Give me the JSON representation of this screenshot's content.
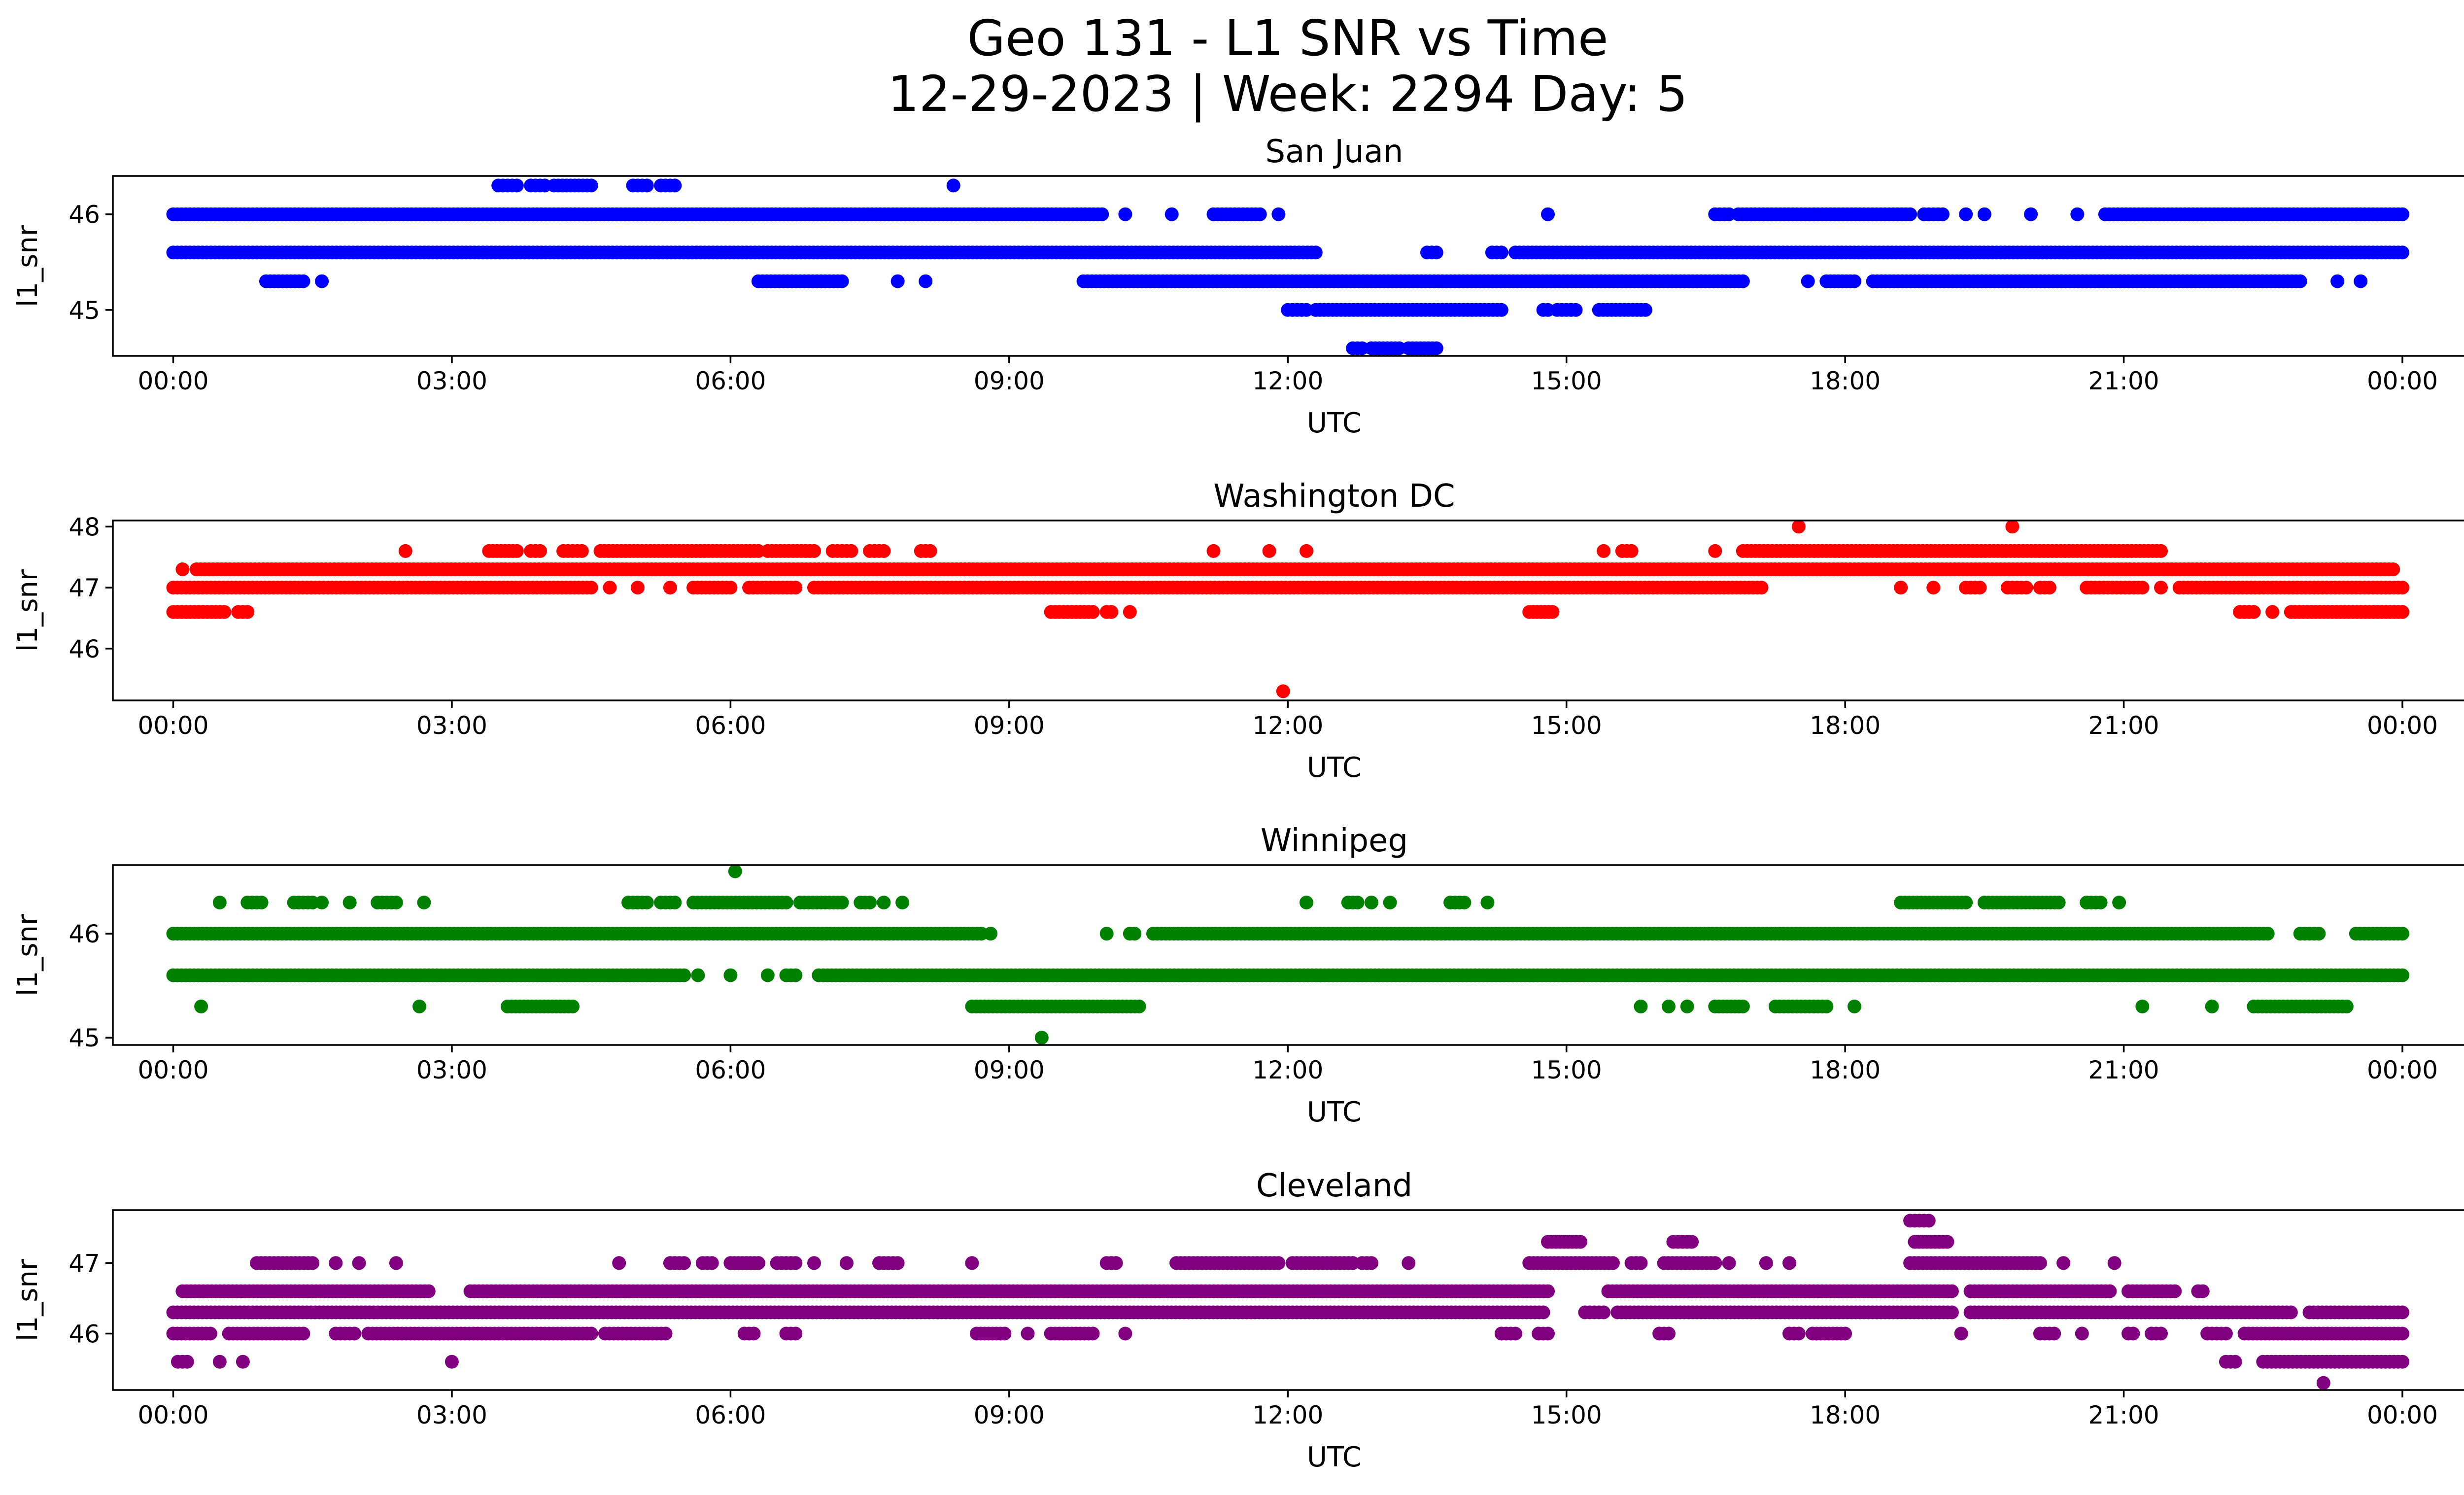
{
  "title_line1": "Geo 131 - L1 SNR vs Time",
  "title_line2": "12-29-2023 | Week: 2294 Day: 5",
  "chart_data": [
    {
      "type": "scatter",
      "title": "San Juan",
      "xlabel": "UTC",
      "ylabel": "l1_snr",
      "color": "#0000ff",
      "x_unit": "hours UTC",
      "xlim": [
        -0.65,
        25.65
      ],
      "ylim": [
        44.52,
        46.4
      ],
      "xticks": [
        0,
        3,
        6,
        9,
        12,
        15,
        18,
        21,
        24
      ],
      "xtick_labels": [
        "00:00",
        "03:00",
        "06:00",
        "09:00",
        "12:00",
        "15:00",
        "18:00",
        "21:00",
        "00:00"
      ],
      "yticks": [
        45,
        46
      ],
      "ytick_labels": [
        "45",
        "46"
      ],
      "grid": false,
      "levels": [
        {
          "y": 46.3,
          "ranges": [
            [
              3.5,
              3.7
            ],
            [
              3.85,
              4.0
            ],
            [
              4.1,
              4.5
            ],
            [
              4.95,
              5.1
            ],
            [
              5.25,
              5.4
            ],
            [
              8.4,
              8.4
            ]
          ]
        },
        {
          "y": 46.0,
          "ranges": [
            [
              0.0,
              10.0
            ],
            [
              10.25,
              10.25
            ],
            [
              10.75,
              10.75
            ],
            [
              11.2,
              11.7
            ],
            [
              11.9,
              11.9
            ],
            [
              14.8,
              14.8
            ],
            [
              16.6,
              16.75
            ],
            [
              16.85,
              18.7
            ],
            [
              18.85,
              19.05
            ],
            [
              19.3,
              19.3
            ],
            [
              19.5,
              19.5
            ],
            [
              20.0,
              20.0
            ],
            [
              20.5,
              20.5
            ],
            [
              20.8,
              24.0
            ]
          ]
        },
        {
          "y": 45.6,
          "ranges": [
            [
              0.0,
              12.3
            ],
            [
              13.5,
              13.6
            ],
            [
              14.2,
              14.3
            ],
            [
              14.45,
              24.0
            ]
          ]
        },
        {
          "y": 45.3,
          "ranges": [
            [
              1.0,
              1.4
            ],
            [
              1.6,
              1.6
            ],
            [
              6.3,
              7.2
            ],
            [
              7.8,
              7.8
            ],
            [
              8.1,
              8.1
            ],
            [
              9.8,
              16.9
            ],
            [
              17.6,
              17.6
            ],
            [
              17.8,
              18.1
            ],
            [
              18.3,
              22.9
            ],
            [
              23.3,
              23.3
            ],
            [
              23.55,
              23.55
            ]
          ]
        },
        {
          "y": 45.0,
          "ranges": [
            [
              12.0,
              12.2
            ],
            [
              12.3,
              14.3
            ],
            [
              14.75,
              14.8
            ],
            [
              14.9,
              15.1
            ],
            [
              15.35,
              15.85
            ]
          ]
        },
        {
          "y": 44.6,
          "ranges": [
            [
              12.7,
              12.8
            ],
            [
              12.9,
              13.2
            ],
            [
              13.3,
              13.6
            ]
          ]
        }
      ]
    },
    {
      "type": "scatter",
      "title": "Washington DC",
      "xlabel": "UTC",
      "ylabel": "l1_snr",
      "color": "#ff0000",
      "x_unit": "hours UTC",
      "xlim": [
        -0.65,
        25.65
      ],
      "ylim": [
        45.15,
        48.1
      ],
      "xticks": [
        0,
        3,
        6,
        9,
        12,
        15,
        18,
        21,
        24
      ],
      "xtick_labels": [
        "00:00",
        "03:00",
        "06:00",
        "09:00",
        "12:00",
        "15:00",
        "18:00",
        "21:00",
        "00:00"
      ],
      "yticks": [
        46,
        47,
        48
      ],
      "ytick_labels": [
        "46",
        "47",
        "48"
      ],
      "grid": false,
      "levels": [
        {
          "y": 48.0,
          "ranges": [
            [
              17.5,
              17.5
            ],
            [
              19.8,
              19.8
            ]
          ]
        },
        {
          "y": 47.6,
          "ranges": [
            [
              2.5,
              2.5
            ],
            [
              3.4,
              3.7
            ],
            [
              3.85,
              3.95
            ],
            [
              4.2,
              4.4
            ],
            [
              4.6,
              6.3
            ],
            [
              6.4,
              6.9
            ],
            [
              7.1,
              7.3
            ],
            [
              7.5,
              7.65
            ],
            [
              8.05,
              8.15
            ],
            [
              11.2,
              11.2
            ],
            [
              11.8,
              11.8
            ],
            [
              12.2,
              12.2
            ],
            [
              15.4,
              15.4
            ],
            [
              15.6,
              15.7
            ],
            [
              16.6,
              16.6
            ],
            [
              16.9,
              21.4
            ]
          ]
        },
        {
          "y": 47.3,
          "ranges": [
            [
              0.1,
              0.1
            ],
            [
              0.25,
              23.9
            ]
          ]
        },
        {
          "y": 47.0,
          "ranges": [
            [
              0.0,
              4.5
            ],
            [
              4.7,
              4.7
            ],
            [
              5.0,
              5.0
            ],
            [
              5.35,
              5.35
            ],
            [
              5.6,
              6.0
            ],
            [
              6.2,
              6.7
            ],
            [
              6.9,
              17.1
            ],
            [
              18.6,
              18.6
            ],
            [
              18.95,
              18.95
            ],
            [
              19.3,
              19.45
            ],
            [
              19.75,
              19.95
            ],
            [
              20.1,
              20.2
            ],
            [
              20.6,
              21.2
            ],
            [
              21.4,
              21.4
            ],
            [
              21.6,
              24.0
            ]
          ]
        },
        {
          "y": 46.6,
          "ranges": [
            [
              0.0,
              0.55
            ],
            [
              0.7,
              0.8
            ],
            [
              9.45,
              9.9
            ],
            [
              10.05,
              10.1
            ],
            [
              10.3,
              10.3
            ],
            [
              14.6,
              14.85
            ],
            [
              22.25,
              22.4
            ],
            [
              22.6,
              22.6
            ],
            [
              22.8,
              24.0
            ]
          ]
        },
        {
          "y": 45.3,
          "ranges": [
            [
              11.95,
              11.95
            ]
          ]
        }
      ]
    },
    {
      "type": "scatter",
      "title": "Winnipeg",
      "xlabel": "UTC",
      "ylabel": "l1_snr",
      "color": "#008000",
      "x_unit": "hours UTC",
      "xlim": [
        -0.65,
        25.65
      ],
      "ylim": [
        44.93,
        46.66
      ],
      "xticks": [
        0,
        3,
        6,
        9,
        12,
        15,
        18,
        21,
        24
      ],
      "xtick_labels": [
        "00:00",
        "03:00",
        "06:00",
        "09:00",
        "12:00",
        "15:00",
        "18:00",
        "21:00",
        "00:00"
      ],
      "yticks": [
        45,
        46
      ],
      "ytick_labels": [
        "45",
        "46"
      ],
      "grid": false,
      "levels": [
        {
          "y": 46.6,
          "ranges": [
            [
              6.05,
              6.05
            ]
          ]
        },
        {
          "y": 46.3,
          "ranges": [
            [
              0.5,
              0.5
            ],
            [
              0.8,
              0.95
            ],
            [
              1.3,
              1.5
            ],
            [
              1.6,
              1.6
            ],
            [
              1.9,
              1.9
            ],
            [
              2.2,
              2.4
            ],
            [
              2.7,
              2.7
            ],
            [
              4.9,
              5.1
            ],
            [
              5.25,
              5.4
            ],
            [
              5.6,
              6.6
            ],
            [
              6.75,
              7.2
            ],
            [
              7.4,
              7.5
            ],
            [
              7.65,
              7.65
            ],
            [
              7.85,
              7.85
            ],
            [
              12.2,
              12.2
            ],
            [
              12.65,
              12.75
            ],
            [
              12.9,
              12.9
            ],
            [
              13.1,
              13.1
            ],
            [
              13.75,
              13.9
            ],
            [
              14.15,
              14.15
            ],
            [
              18.6,
              19.3
            ],
            [
              19.5,
              20.3
            ],
            [
              20.6,
              20.75
            ],
            [
              20.95,
              20.95
            ]
          ]
        },
        {
          "y": 46.0,
          "ranges": [
            [
              0.0,
              8.7
            ],
            [
              8.8,
              8.8
            ],
            [
              10.05,
              10.05
            ],
            [
              10.3,
              10.35
            ],
            [
              10.55,
              22.55
            ],
            [
              22.9,
              23.1
            ],
            [
              23.5,
              24.0
            ]
          ]
        },
        {
          "y": 45.6,
          "ranges": [
            [
              0.0,
              5.5
            ],
            [
              5.65,
              5.65
            ],
            [
              6.0,
              6.0
            ],
            [
              6.4,
              6.4
            ],
            [
              6.6,
              6.7
            ],
            [
              6.95,
              6.95
            ],
            [
              7.0,
              24.0
            ]
          ]
        },
        {
          "y": 45.3,
          "ranges": [
            [
              0.3,
              0.3
            ],
            [
              2.65,
              2.65
            ],
            [
              3.6,
              4.3
            ],
            [
              8.6,
              10.4
            ],
            [
              15.8,
              15.8
            ],
            [
              16.1,
              16.1
            ],
            [
              16.3,
              16.3
            ],
            [
              16.6,
              16.9
            ],
            [
              17.25,
              17.8
            ],
            [
              18.1,
              18.1
            ],
            [
              21.2,
              21.2
            ],
            [
              21.95,
              21.95
            ],
            [
              22.4,
              23.4
            ]
          ]
        },
        {
          "y": 45.0,
          "ranges": [
            [
              9.35,
              9.35
            ]
          ]
        }
      ]
    },
    {
      "type": "scatter",
      "title": "Cleveland",
      "xlabel": "UTC",
      "ylabel": "l1_snr",
      "color": "#800080",
      "x_unit": "hours UTC",
      "xlim": [
        -0.65,
        25.65
      ],
      "ylim": [
        45.2,
        47.75
      ],
      "xticks": [
        0,
        3,
        6,
        9,
        12,
        15,
        18,
        21,
        24
      ],
      "xtick_labels": [
        "00:00",
        "03:00",
        "06:00",
        "09:00",
        "12:00",
        "15:00",
        "18:00",
        "21:00",
        "00:00"
      ],
      "yticks": [
        46,
        47
      ],
      "ytick_labels": [
        "46",
        "47"
      ],
      "grid": false,
      "levels": [
        {
          "y": 47.6,
          "ranges": [
            [
              18.7,
              18.9
            ]
          ]
        },
        {
          "y": 47.3,
          "ranges": [
            [
              14.8,
              15.15
            ],
            [
              16.15,
              16.35
            ],
            [
              18.75,
              19.1
            ]
          ]
        },
        {
          "y": 47.0,
          "ranges": [
            [
              0.9,
              1.5
            ],
            [
              1.75,
              1.75
            ],
            [
              2.0,
              2.0
            ],
            [
              2.4,
              2.4
            ],
            [
              4.8,
              4.8
            ],
            [
              5.35,
              5.5
            ],
            [
              5.7,
              5.8
            ],
            [
              6.0,
              6.3
            ],
            [
              6.5,
              6.7
            ],
            [
              6.9,
              6.9
            ],
            [
              7.25,
              7.25
            ],
            [
              7.6,
              7.8
            ],
            [
              8.6,
              8.6
            ],
            [
              10.05,
              10.15
            ],
            [
              10.8,
              11.9
            ],
            [
              12.05,
              12.7
            ],
            [
              12.8,
              12.9
            ],
            [
              13.3,
              13.3
            ],
            [
              14.6,
              15.5
            ],
            [
              15.7,
              15.8
            ],
            [
              16.05,
              16.6
            ],
            [
              16.75,
              16.75
            ],
            [
              17.15,
              17.15
            ],
            [
              17.4,
              17.4
            ],
            [
              18.7,
              20.1
            ],
            [
              20.35,
              20.35
            ],
            [
              20.9,
              20.9
            ]
          ]
        },
        {
          "y": 46.6,
          "ranges": [
            [
              0.1,
              2.75
            ],
            [
              3.2,
              14.8
            ],
            [
              15.45,
              19.15
            ],
            [
              19.35,
              20.85
            ],
            [
              21.05,
              21.55
            ],
            [
              21.8,
              21.85
            ]
          ]
        },
        {
          "y": 46.3,
          "ranges": [
            [
              0.0,
              14.75
            ],
            [
              15.2,
              15.4
            ],
            [
              15.55,
              19.15
            ],
            [
              19.35,
              22.8
            ],
            [
              23.0,
              24.0
            ]
          ]
        },
        {
          "y": 46.0,
          "ranges": [
            [
              0.0,
              0.4
            ],
            [
              0.6,
              1.4
            ],
            [
              1.75,
              1.95
            ],
            [
              2.1,
              4.5
            ],
            [
              4.65,
              5.3
            ],
            [
              6.15,
              6.25
            ],
            [
              6.6,
              6.7
            ],
            [
              8.65,
              8.95
            ],
            [
              9.2,
              9.2
            ],
            [
              9.45,
              9.9
            ],
            [
              10.25,
              10.25
            ],
            [
              14.3,
              14.45
            ],
            [
              14.7,
              14.8
            ],
            [
              16.0,
              16.1
            ],
            [
              17.4,
              17.5
            ],
            [
              17.65,
              18.0
            ],
            [
              19.25,
              19.25
            ],
            [
              20.1,
              20.25
            ],
            [
              20.55,
              20.55
            ],
            [
              21.05,
              21.1
            ],
            [
              21.3,
              21.4
            ],
            [
              21.9,
              22.1
            ],
            [
              22.3,
              24.0
            ]
          ]
        },
        {
          "y": 45.6,
          "ranges": [
            [
              0.05,
              0.15
            ],
            [
              0.5,
              0.5
            ],
            [
              0.75,
              0.75
            ],
            [
              3.0,
              3.0
            ],
            [
              22.1,
              22.2
            ],
            [
              22.5,
              24.0
            ]
          ]
        },
        {
          "y": 45.3,
          "ranges": [
            [
              23.15,
              23.15
            ]
          ]
        }
      ]
    }
  ]
}
